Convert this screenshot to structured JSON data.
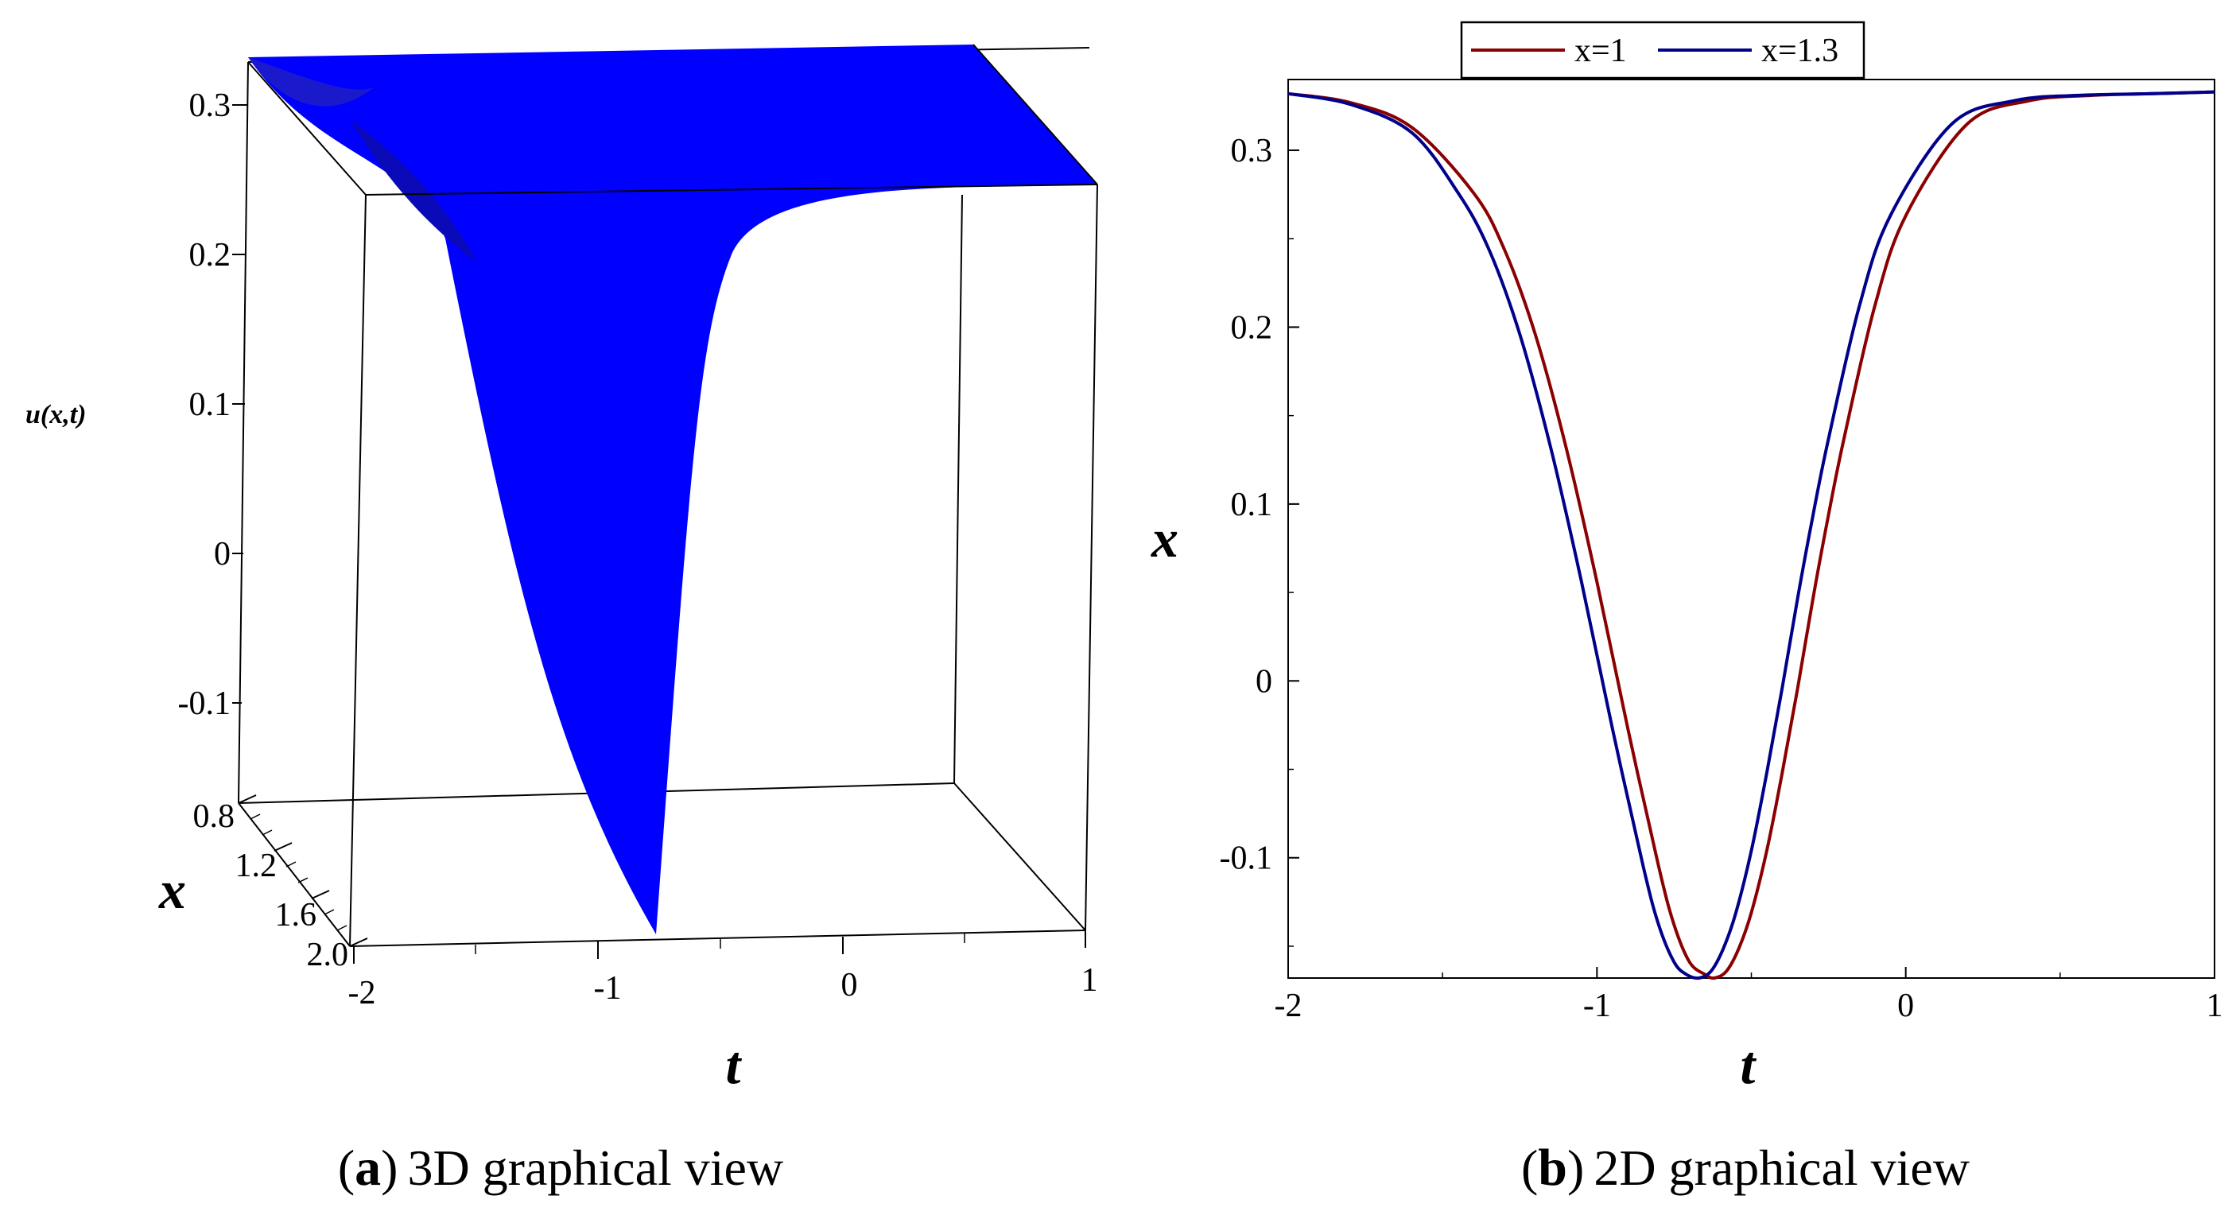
{
  "chart_data": [
    {
      "type": "surface",
      "panel_letter": "a",
      "caption": "3D graphical view",
      "xlabel": "t",
      "ylabel": "x",
      "zlabel": "u(x,t)",
      "x_ticks": [
        "-2",
        "-1",
        "0",
        "1"
      ],
      "y_ticks": [
        "0.8",
        "1.2",
        "1.6",
        "2.0"
      ],
      "z_ticks": [
        "0.3",
        "0.2",
        "0.1",
        "0",
        "-0.1"
      ],
      "t_range": [
        -2,
        1
      ],
      "x_range": [
        0.8,
        2.0
      ],
      "z_range": [
        -0.17,
        0.34
      ],
      "surface_color": "#0000ff",
      "profile": {
        "t": [
          -2,
          -1.75,
          -1.5,
          -1.3,
          -1.1,
          -1.0,
          -0.9,
          -0.8,
          -0.7,
          -0.6,
          -0.5,
          -0.4,
          -0.3,
          -0.2,
          0,
          0.25,
          0.5,
          1.0
        ],
        "u": [
          0.332,
          0.328,
          0.313,
          0.28,
          0.2,
          0.13,
          0.04,
          -0.06,
          -0.14,
          -0.165,
          -0.12,
          -0.02,
          0.09,
          0.18,
          0.28,
          0.318,
          0.328,
          0.333
        ]
      }
    },
    {
      "type": "line",
      "panel_letter": "b",
      "caption": "2D graphical view",
      "xlabel": "t",
      "ylabel": "x",
      "xlim": [
        -2,
        1
      ],
      "ylim": [
        -0.168,
        0.34
      ],
      "x_ticks": [
        "-2",
        "-1",
        "0",
        "1"
      ],
      "y_ticks": [
        "0.3",
        "0.2",
        "0.1",
        "0",
        "-0.1"
      ],
      "legend_position": "top-center",
      "series": [
        {
          "name": "x=1",
          "color": "#8b0000",
          "x": [
            -2.0,
            -1.8,
            -1.6,
            -1.4,
            -1.3,
            -1.2,
            -1.1,
            -1.0,
            -0.9,
            -0.8,
            -0.75,
            -0.7,
            -0.65,
            -0.62,
            -0.58,
            -0.54,
            -0.5,
            -0.45,
            -0.4,
            -0.35,
            -0.3,
            -0.25,
            -0.2,
            -0.1,
            0.0,
            0.2,
            0.4,
            0.6,
            0.8,
            1.0
          ],
          "y": [
            0.332,
            0.327,
            0.313,
            0.276,
            0.244,
            0.196,
            0.132,
            0.056,
            -0.027,
            -0.105,
            -0.138,
            -0.159,
            -0.166,
            -0.168,
            -0.164,
            -0.151,
            -0.131,
            -0.096,
            -0.052,
            -0.004,
            0.047,
            0.094,
            0.137,
            0.212,
            0.263,
            0.315,
            0.328,
            0.331,
            0.332,
            0.333
          ]
        },
        {
          "name": "x=1.3",
          "color": "#00008b",
          "x": [
            -2.0,
            -1.8,
            -1.6,
            -1.45,
            -1.35,
            -1.25,
            -1.15,
            -1.05,
            -0.95,
            -0.85,
            -0.8,
            -0.75,
            -0.71,
            -0.67,
            -0.63,
            -0.59,
            -0.55,
            -0.5,
            -0.45,
            -0.4,
            -0.35,
            -0.3,
            -0.25,
            -0.15,
            -0.05,
            0.15,
            0.35,
            0.55,
            0.8,
            1.0
          ],
          "y": [
            0.332,
            0.326,
            0.31,
            0.276,
            0.244,
            0.196,
            0.132,
            0.056,
            -0.027,
            -0.105,
            -0.138,
            -0.159,
            -0.166,
            -0.168,
            -0.164,
            -0.151,
            -0.131,
            -0.096,
            -0.052,
            -0.004,
            0.047,
            0.094,
            0.137,
            0.212,
            0.263,
            0.315,
            0.328,
            0.331,
            0.332,
            0.333
          ]
        }
      ]
    }
  ]
}
